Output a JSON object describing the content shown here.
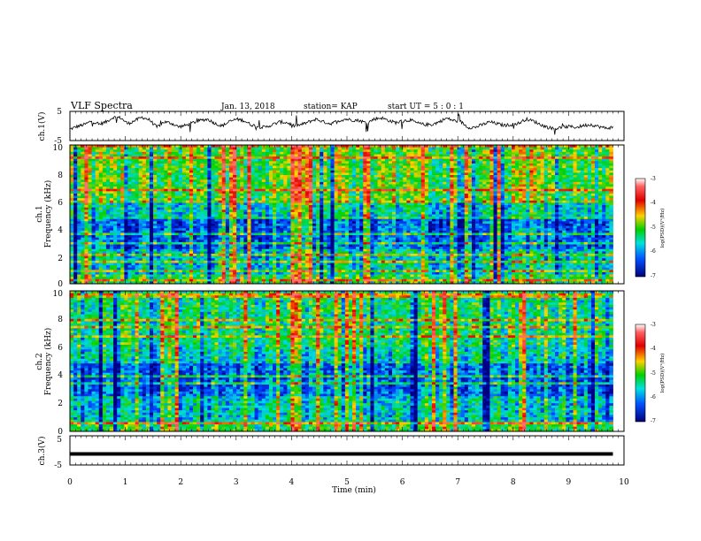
{
  "header": {
    "title": "VLF Spectra",
    "date": "Jan. 13, 2018",
    "station": "station= KAP",
    "start": "start  UT  =   5 : 0  : 1"
  },
  "chart_data": [
    {
      "type": "line",
      "panel": "ch1-waveform",
      "ylabel": "ch.1(V)",
      "yticks": [
        "5",
        "-5"
      ],
      "ylim": [
        -5,
        5
      ],
      "xlim": [
        0,
        10
      ],
      "series": [
        {
          "values": [
            -1.2,
            -0.2,
            0.5,
            1.8,
            0.6,
            1.5,
            3.2,
            3.0,
            0.8,
            2.0,
            3.2,
            2.2,
            -0.5,
            1.5,
            1.0,
            -0.3,
            0.2,
            1.2,
            2.0,
            2.5,
            1.0,
            0.0,
            1.5,
            2.5,
            2.0,
            0.5,
            -0.3,
            -0.5,
            0.5,
            1.5,
            1.2,
            0.0,
            0.5,
            1.5,
            2.5,
            1.5,
            0.8,
            1.8,
            2.5,
            2.2,
            2.0,
            1.0,
            2.5,
            3.0,
            2.0,
            1.2,
            1.8,
            2.2,
            1.0,
            0.5,
            0.5,
            1.5,
            2.8,
            2.0,
            1.5,
            -0.5,
            -0.5,
            0.5,
            1.5,
            0.8,
            0.2,
            0.5,
            1.0,
            2.5,
            1.8,
            0.5,
            -0.5,
            -1.0,
            -0.5,
            -0.2,
            -0.5,
            0.2,
            0.5,
            -0.2,
            -0.8,
            -0.5
          ]
        }
      ]
    },
    {
      "type": "heatmap",
      "panel": "ch1-spectrogram",
      "ylabel": "ch.1",
      "ylabel2": "Frequency (kHz)",
      "yticks": [
        "0",
        "2",
        "4",
        "6",
        "8",
        "10"
      ],
      "ylim": [
        0,
        10
      ],
      "xlim": [
        0,
        10
      ],
      "colorbar": {
        "label": "log(PSD)(V²/Hz)",
        "range": [
          -7,
          -3
        ],
        "ticks": [
          "-3",
          "-4",
          "-5",
          "-6",
          "-7"
        ]
      }
    },
    {
      "type": "heatmap",
      "panel": "ch2-spectrogram",
      "ylabel": "ch.2",
      "ylabel2": "Frequency (kHz)",
      "yticks": [
        "0",
        "2",
        "4",
        "6",
        "8",
        "10"
      ],
      "ylim": [
        0,
        10
      ],
      "xlim": [
        0,
        10
      ],
      "colorbar": {
        "label": "log(PSD)(V²/Hz)",
        "range": [
          -7,
          -3
        ],
        "ticks": [
          "-3",
          "-4",
          "-5",
          "-6",
          "-7"
        ]
      }
    },
    {
      "type": "line",
      "panel": "ch3-waveform",
      "ylabel": "ch.3(V)",
      "yticks": [
        "5",
        "-5"
      ],
      "ylim": [
        -5,
        5
      ],
      "xlim": [
        0,
        10
      ],
      "series": [
        {
          "values": [
            -1.3,
            -1.3,
            -1.3,
            -1.3,
            -1.3,
            -1.3,
            -1.3,
            -1.3,
            -1.3,
            -1.3,
            -1.3
          ]
        }
      ]
    }
  ],
  "xaxis": {
    "label": "Time (min)",
    "ticks": [
      "0",
      "1",
      "2",
      "3",
      "4",
      "5",
      "6",
      "7",
      "8",
      "9",
      "10"
    ],
    "data_end": 9.8
  }
}
